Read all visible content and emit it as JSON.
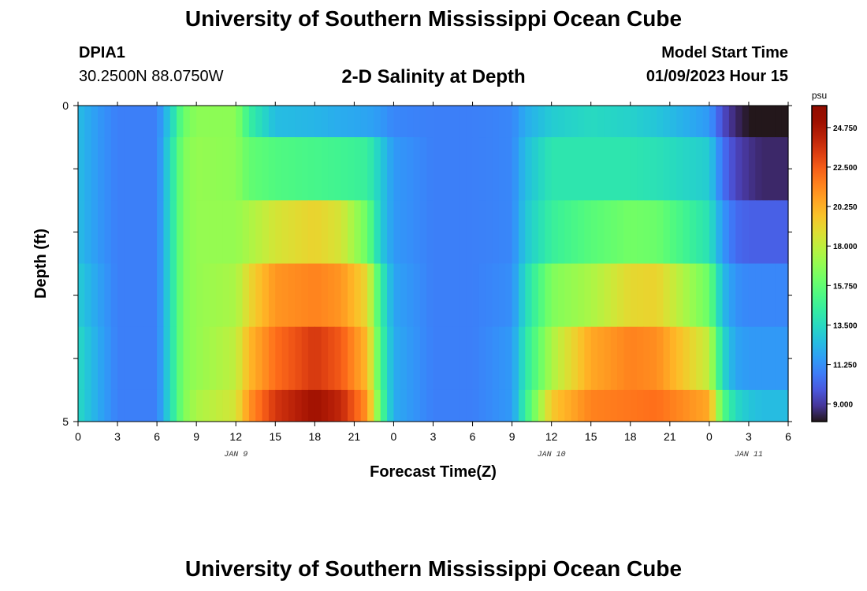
{
  "header": {
    "title": "University of Southern Mississippi Ocean Cube",
    "station": "DPIA1",
    "coords": "30.2500N  88.0750W",
    "subtitle": "2-D Salinity at Depth",
    "model_start_label": "Model Start Time",
    "model_start_value": "01/09/2023 Hour 15"
  },
  "footer": {
    "title": "University of Southern Mississippi Ocean Cube"
  },
  "chart_data": {
    "type": "heatmap",
    "title": "2-D Salinity at Depth",
    "xlabel": "Forecast Time(Z)",
    "ylabel": "Depth (ft)",
    "x_tick_labels": [
      "0",
      "3",
      "6",
      "9",
      "12",
      "15",
      "18",
      "21",
      "0",
      "3",
      "6",
      "9",
      "12",
      "15",
      "18",
      "21",
      "0",
      "3",
      "6"
    ],
    "day_labels": [
      {
        "label": "JAN 9",
        "at_hour": 12
      },
      {
        "label": "JAN 10",
        "at_hour": 36
      },
      {
        "label": "JAN 11",
        "at_hour": 51
      }
    ],
    "y_tick_labels": [
      {
        "label": "0",
        "depth": 0
      },
      {
        "label": "5",
        "depth": 5
      }
    ],
    "xlim": [
      0,
      54
    ],
    "ylim": [
      0,
      5
    ],
    "depth_band_edges": [
      0,
      0.5,
      1.5,
      2.5,
      3.5,
      4.5,
      5
    ],
    "colorbar": {
      "unit": "psu",
      "range": [
        8.0,
        26.0
      ],
      "ticks": [
        "9.000",
        "11.250",
        "13.500",
        "15.750",
        "18.000",
        "20.250",
        "22.500",
        "24.750"
      ],
      "tick_values": [
        9.0,
        11.25,
        13.5,
        15.75,
        18.0,
        20.25,
        22.5,
        24.75
      ]
    },
    "gap": {
      "hour": 18.5,
      "depth_band": 5
    },
    "salinity_keyframes": {
      "hours": [
        0,
        1.5,
        3,
        6,
        7,
        8,
        9,
        12,
        13,
        15,
        18,
        20,
        22,
        23,
        24,
        27,
        30,
        33,
        34,
        36,
        39,
        42,
        44,
        48,
        49,
        50,
        51,
        52,
        53,
        54
      ],
      "bands": [
        [
          12.5,
          11.5,
          10.8,
          10.8,
          13.0,
          16.0,
          16.8,
          16.8,
          14.5,
          12.5,
          12.3,
          12.0,
          11.8,
          11.5,
          11.0,
          10.8,
          10.8,
          11.0,
          12.0,
          13.0,
          13.5,
          13.2,
          12.8,
          11.5,
          9.5,
          8.5,
          8.0,
          7.8,
          7.8,
          7.8
        ],
        [
          12.5,
          11.5,
          10.8,
          10.8,
          13.5,
          16.5,
          17.0,
          16.8,
          15.8,
          15.3,
          15.0,
          14.8,
          14.5,
          13.0,
          11.5,
          10.8,
          10.8,
          11.0,
          12.5,
          14.0,
          14.0,
          14.0,
          13.8,
          13.0,
          10.5,
          9.3,
          8.8,
          8.5,
          8.5,
          8.5
        ],
        [
          12.5,
          11.5,
          10.8,
          10.8,
          13.5,
          16.5,
          17.0,
          17.0,
          17.5,
          18.5,
          19.2,
          18.5,
          16.0,
          13.0,
          11.5,
          10.8,
          10.8,
          11.0,
          12.8,
          14.5,
          15.5,
          16.2,
          16.0,
          13.8,
          11.5,
          10.3,
          10.0,
          10.0,
          10.0,
          10.0
        ],
        [
          13.0,
          11.8,
          10.8,
          10.8,
          13.5,
          16.5,
          17.0,
          17.5,
          19.0,
          21.0,
          21.5,
          21.0,
          19.0,
          14.5,
          11.8,
          10.8,
          10.8,
          11.2,
          13.5,
          16.5,
          17.5,
          19.0,
          19.2,
          16.0,
          12.5,
          11.3,
          11.0,
          11.0,
          11.0,
          11.0
        ],
        [
          13.5,
          12.0,
          10.8,
          10.8,
          13.5,
          16.5,
          17.0,
          18.0,
          20.0,
          22.0,
          23.5,
          22.5,
          20.0,
          15.0,
          12.0,
          10.8,
          10.8,
          11.5,
          14.0,
          17.5,
          20.5,
          21.5,
          21.2,
          18.0,
          13.5,
          11.8,
          11.5,
          11.5,
          11.5,
          11.5
        ],
        [
          13.5,
          12.0,
          10.8,
          10.8,
          13.5,
          16.5,
          17.5,
          18.5,
          21.0,
          23.5,
          25.0,
          24.0,
          21.0,
          15.5,
          12.0,
          10.8,
          10.8,
          11.5,
          14.5,
          19.5,
          21.5,
          21.8,
          22.0,
          20.5,
          15.5,
          13.5,
          12.8,
          12.5,
          12.5,
          12.5
        ]
      ]
    }
  }
}
